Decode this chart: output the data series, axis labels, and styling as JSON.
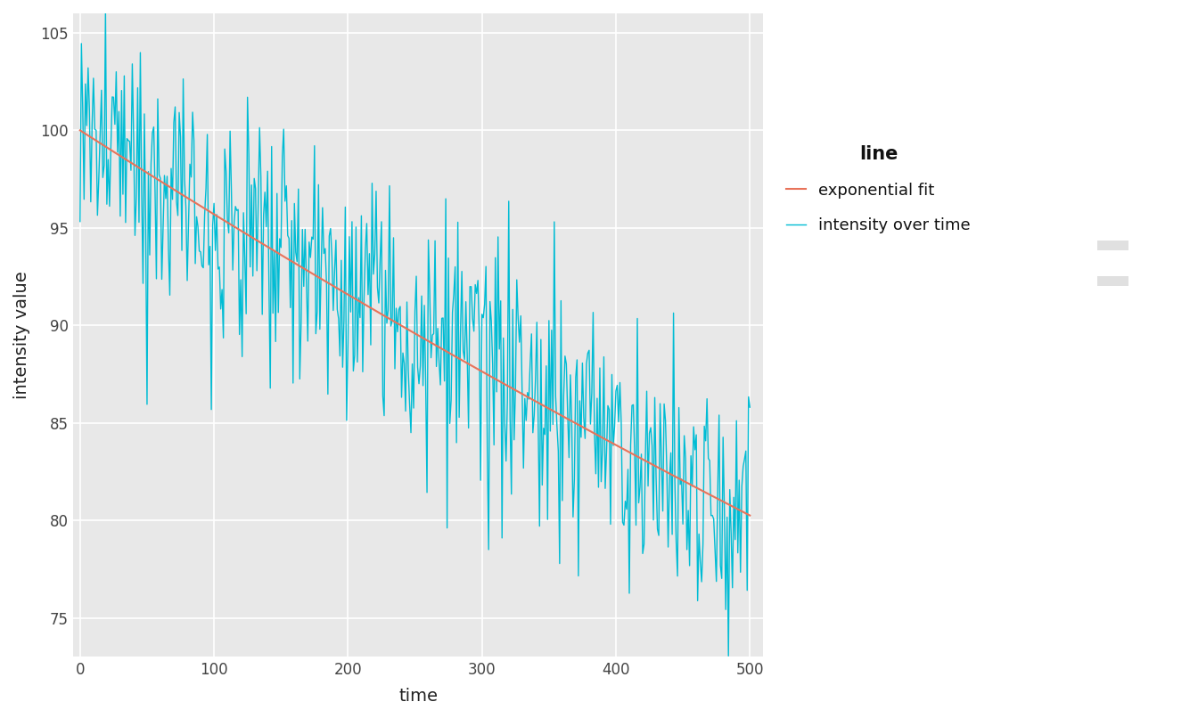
{
  "title": "",
  "xlabel": "time",
  "ylabel": "intensity value",
  "xlim": [
    -5,
    510
  ],
  "ylim": [
    73,
    106
  ],
  "xticks": [
    0,
    100,
    200,
    300,
    400,
    500
  ],
  "yticks": [
    75,
    80,
    85,
    90,
    95,
    100,
    105
  ],
  "plot_bg_color": "#e8e8e8",
  "fig_bg_color": "#ffffff",
  "grid_color": "#ffffff",
  "teal_color": "#00BCD4",
  "fit_color": "#E8735A",
  "legend_title": "line",
  "legend_labels": [
    "exponential fit",
    "intensity over time"
  ],
  "exp_A": 100.0,
  "exp_b": 0.00044,
  "noise_seed": 12,
  "n_points": 500,
  "noise_std": 3.2,
  "teal_linewidth": 1.0,
  "fit_linewidth": 1.5,
  "legend_key_bg": "#e0e0e0"
}
